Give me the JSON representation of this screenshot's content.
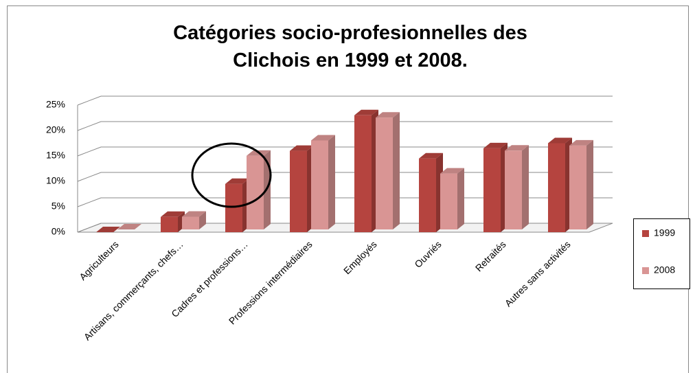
{
  "chart_data": {
    "type": "bar3d",
    "title": "Catégories socio-profesionnelles des Clichois en 1999 et 2008.",
    "categories": [
      "Agriculteurs",
      "Artisans, commerçants, chefs…",
      "Cadres et professions…",
      "Professions intermédiaires",
      "Employés",
      "Ouvriés",
      "Retraités",
      "Autres sans activités"
    ],
    "series": [
      {
        "name": "1999",
        "color": "#b5443f",
        "values": [
          0,
          3,
          9.5,
          16,
          23,
          14.5,
          16.5,
          17.5
        ]
      },
      {
        "name": "2008",
        "color": "#d99594",
        "values": [
          0,
          2.5,
          14.5,
          17.5,
          22,
          11,
          15.5,
          16.5
        ]
      }
    ],
    "ylim": [
      0,
      25
    ],
    "yticks": [
      {
        "value": 0,
        "label": "0%"
      },
      {
        "value": 5,
        "label": "5%"
      },
      {
        "value": 10,
        "label": "10%"
      },
      {
        "value": 15,
        "label": "15%"
      },
      {
        "value": 20,
        "label": "20%"
      },
      {
        "value": 25,
        "label": "25%"
      }
    ],
    "grid": true,
    "legend": "right"
  }
}
